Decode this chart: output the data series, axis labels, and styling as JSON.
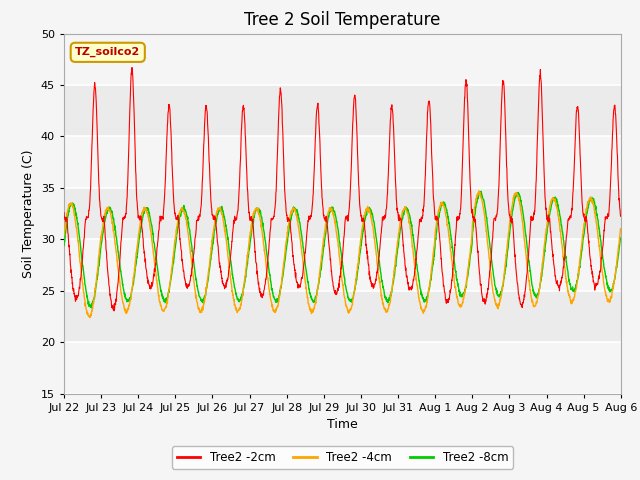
{
  "title": "Tree 2 Soil Temperature",
  "xlabel": "Time",
  "ylabel": "Soil Temperature (C)",
  "ylim": [
    15,
    50
  ],
  "annotation": "TZ_soilco2",
  "xtick_labels": [
    "Jul 22",
    "Jul 23",
    "Jul 24",
    "Jul 25",
    "Jul 26",
    "Jul 27",
    "Jul 28",
    "Jul 29",
    "Jul 30",
    "Jul 31",
    "Aug 1",
    "Aug 2",
    "Aug 3",
    "Aug 4",
    "Aug 5",
    "Aug 6"
  ],
  "series": {
    "2cm": {
      "color": "#ff0000",
      "label": "Tree2 -2cm"
    },
    "4cm": {
      "color": "#ffa500",
      "label": "Tree2 -4cm"
    },
    "8cm": {
      "color": "#00cc00",
      "label": "Tree2 -8cm"
    }
  },
  "bg_color": "#ebebeb",
  "fig_color": "#f5f5f5",
  "grid_color": "#ffffff",
  "title_fontsize": 12,
  "axis_label_fontsize": 9,
  "tick_fontsize": 8,
  "n_days": 15,
  "points_per_day": 144
}
